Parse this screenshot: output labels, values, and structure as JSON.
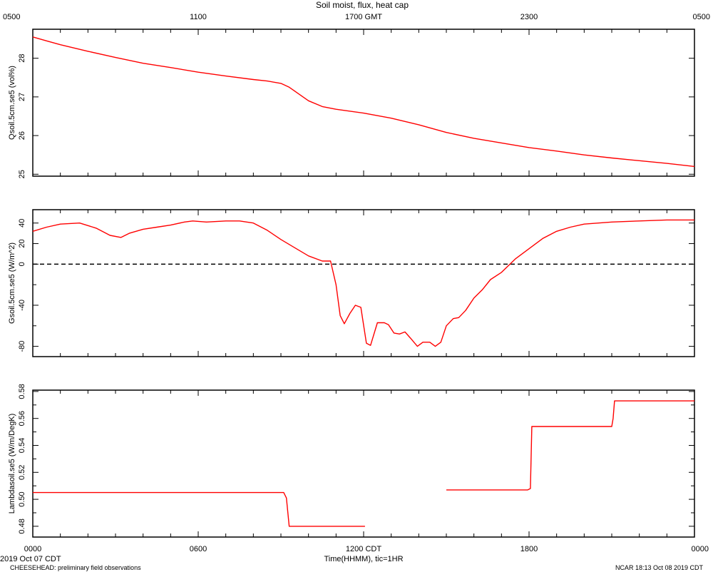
{
  "title": "Soil moist, flux, heat cap",
  "top_axis": {
    "ticks": [
      "0500",
      "1100",
      "1700 GMT",
      "2300",
      "0500"
    ]
  },
  "bottom_axis": {
    "ticks": [
      "0000",
      "0600",
      "1200 CDT",
      "1800",
      "0000"
    ],
    "label": "Time(HHMM), tic=1HR",
    "date_label": "2019 Oct 07 CDT"
  },
  "footer": {
    "left": "CHEESEHEAD: preliminary field observations",
    "right": "NCAR 18:13 Oct 08 2019 CDT"
  },
  "colors": {
    "series": "#ff0000",
    "axes": "#000000"
  },
  "chart_data": [
    {
      "type": "line",
      "ylabel": "Qsoil.5cm.se5 (vol%)",
      "ylim": [
        24.95,
        28.75
      ],
      "yticks": [
        25,
        26,
        27,
        28
      ],
      "ytick_labels": [
        "25",
        "26",
        "27",
        "28"
      ],
      "xlim": [
        0,
        24
      ],
      "series": [
        {
          "x": [
            0,
            0.5,
            1,
            2,
            3,
            4,
            5,
            6,
            7,
            8,
            8.5,
            9,
            9.3,
            9.6,
            10,
            10.5,
            11,
            12,
            13,
            14,
            15,
            16,
            17,
            18,
            19,
            20,
            21,
            22,
            23,
            24
          ],
          "y": [
            28.55,
            28.45,
            28.35,
            28.18,
            28.02,
            27.87,
            27.76,
            27.64,
            27.54,
            27.45,
            27.41,
            27.35,
            27.25,
            27.1,
            26.9,
            26.75,
            26.68,
            26.58,
            26.45,
            26.28,
            26.08,
            25.93,
            25.81,
            25.69,
            25.6,
            25.5,
            25.42,
            25.35,
            25.28,
            25.2
          ]
        }
      ]
    },
    {
      "type": "line",
      "ylabel": "Gsoil.5cm.se5 (W/m^2)",
      "ylim": [
        -90,
        53
      ],
      "yticks": [
        -80,
        -40,
        0,
        20,
        40
      ],
      "ytick_labels": [
        "-80",
        "-40",
        "0",
        "20",
        "40"
      ],
      "minor_yticks": [
        -60,
        -20
      ],
      "reference_line": 0,
      "xlim": [
        0,
        24
      ],
      "series": [
        {
          "x": [
            0,
            0.5,
            1,
            1.7,
            2.3,
            2.8,
            3.2,
            3.5,
            4,
            4.5,
            5,
            5.5,
            5.8,
            6.3,
            7,
            7.5,
            8,
            8.5,
            9,
            9.5,
            10,
            10.5,
            10.8,
            11,
            11.15,
            11.3,
            11.5,
            11.7,
            11.9,
            12.1,
            12.25,
            12.5,
            12.75,
            12.9,
            13.1,
            13.3,
            13.5,
            13.7,
            13.95,
            14.15,
            14.4,
            14.6,
            14.8,
            15,
            15.25,
            15.45,
            15.7,
            16,
            16.3,
            16.6,
            17,
            17.5,
            18,
            18.5,
            19,
            19.5,
            20,
            21,
            22,
            23,
            24
          ],
          "y": [
            32,
            36,
            39,
            40,
            35,
            28,
            26,
            30,
            34,
            36,
            38,
            41,
            42,
            41,
            42,
            42,
            40,
            33,
            24,
            16,
            8,
            3,
            3,
            -20,
            -50,
            -58,
            -48,
            -40,
            -42,
            -77,
            -79,
            -57,
            -57,
            -59,
            -67,
            -68,
            -66,
            -72,
            -80,
            -76,
            -76,
            -80,
            -76,
            -60,
            -53,
            -52,
            -45,
            -33,
            -25,
            -15,
            -8,
            5,
            15,
            25,
            32,
            36,
            39,
            41,
            42,
            43,
            43
          ]
        }
      ]
    },
    {
      "type": "line",
      "ylabel": "Lambdasoil.se5 (W/m/DegK)",
      "ylim": [
        0.472,
        0.581
      ],
      "yticks": [
        0.48,
        0.5,
        0.52,
        0.54,
        0.56,
        0.58
      ],
      "ytick_labels": [
        "0.48",
        "0.50",
        "0.52",
        "0.54",
        "0.56",
        "0.58"
      ],
      "minor_yticks": [
        0.49,
        0.51,
        0.53,
        0.55,
        0.57
      ],
      "xlim": [
        0,
        24
      ],
      "series": [
        {
          "x": [
            0,
            9,
            9.1,
            9.2,
            9.3,
            10,
            11,
            12.05
          ],
          "y": [
            0.505,
            0.505,
            0.505,
            0.501,
            0.48,
            0.48,
            0.48,
            0.48
          ]
        },
        {
          "x": [
            15,
            16,
            17,
            17.95,
            18.05,
            18.1,
            19,
            20,
            21,
            21.05,
            21.1,
            22,
            23,
            24
          ],
          "y": [
            0.507,
            0.507,
            0.507,
            0.507,
            0.508,
            0.554,
            0.554,
            0.554,
            0.554,
            0.56,
            0.573,
            0.573,
            0.573,
            0.573
          ]
        }
      ]
    }
  ]
}
